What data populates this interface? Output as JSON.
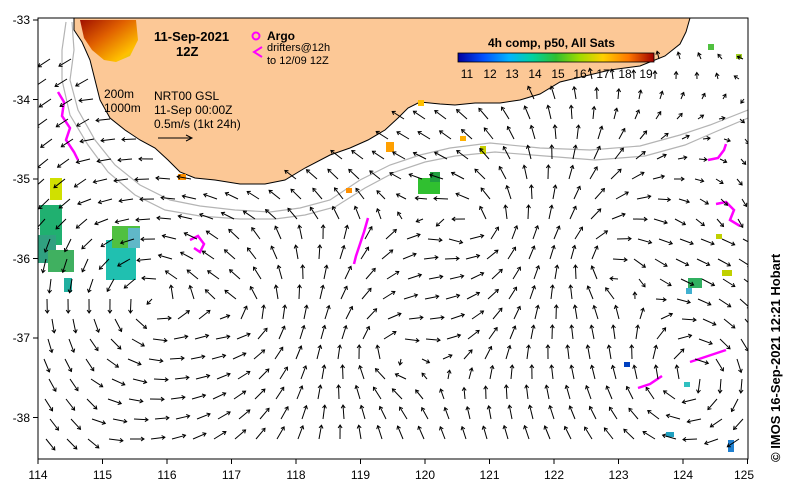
{
  "title": {
    "date": "11-Sep-2021",
    "time": "12Z"
  },
  "legend": {
    "argo_label": "Argo",
    "argo_color": "#ff00ff",
    "drifters_line1": "drifters@12h",
    "drifters_line2": "to 12/09 12Z",
    "drifter_color": "#ff00ff"
  },
  "contours": {
    "isobath_200": "200m",
    "isobath_1000": "1000m"
  },
  "analysis": {
    "product": "NRT00 GSL",
    "date": "11-Sep 00:00Z",
    "scale": "0.5m/s (1kt 24h)"
  },
  "colorbar": {
    "title": "4h comp, p50, All Sats",
    "ticks": [
      "11",
      "12",
      "13",
      "14",
      "15",
      "16",
      "17",
      "18",
      "19"
    ]
  },
  "axes": {
    "lon_ticks": [
      "114",
      "115",
      "116",
      "117",
      "118",
      "119",
      "120",
      "121",
      "122",
      "123",
      "124",
      "125"
    ],
    "lat_ticks": [
      "-33",
      "-34",
      "-35",
      "-36",
      "-37",
      "-38"
    ]
  },
  "credit": "© IMOS 16-Sep-2021 12:21 Hobart",
  "colors": {
    "land": "#fcc896",
    "coastline": "#000000",
    "isobath": "#b4b4b4",
    "argo": "#ff00ff"
  }
}
